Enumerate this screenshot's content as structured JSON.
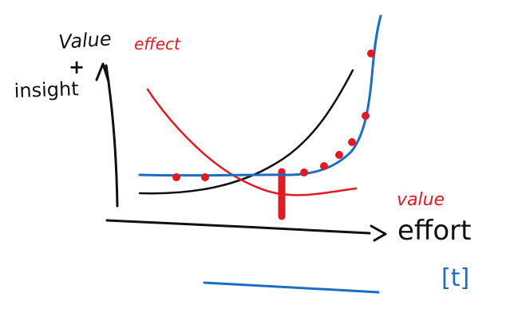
{
  "axis_labels": {
    "y_top": "Value",
    "plus": "+",
    "y_bottom": "insight",
    "x_label": "effort",
    "x_unit": "[t]"
  },
  "curve_labels": {
    "effect": "effect",
    "value": "value"
  },
  "colors": {
    "ink": "#111111",
    "red": "#e01b24",
    "blue": "#1c6fc0"
  }
}
